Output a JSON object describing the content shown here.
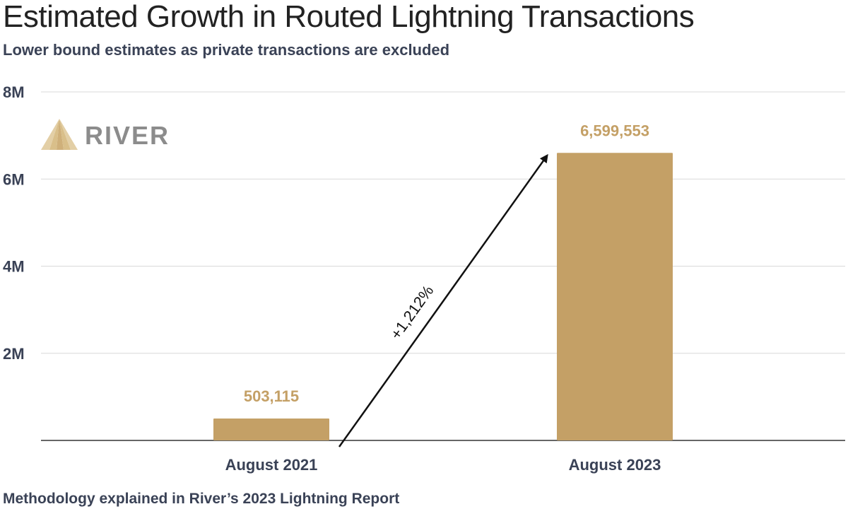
{
  "header": {
    "title": "Estimated Growth in Routed Lightning Transactions",
    "subtitle": "Lower bound estimates as private transactions are excluded"
  },
  "footer": {
    "note": "Methodology explained in River’s 2023 Lightning Report"
  },
  "logo": {
    "text": "RIVER",
    "icon": "river-peak-icon"
  },
  "colors": {
    "bar": "#c4a066",
    "bar_label": "#c4a066",
    "grid": "#d9d9d9",
    "axis": "#333333",
    "text": "#3a4256",
    "arrow": "#111111"
  },
  "chart_data": {
    "type": "bar",
    "title": "Estimated Growth in Routed Lightning Transactions",
    "subtitle": "Lower bound estimates as private transactions are excluded",
    "categories": [
      "August 2021",
      "August 2023"
    ],
    "values": [
      503115,
      6599553
    ],
    "value_labels": [
      "503,115",
      "6,599,553"
    ],
    "ylim": [
      0,
      8000000
    ],
    "yticks": [
      2000000,
      4000000,
      6000000,
      8000000
    ],
    "ytick_labels": [
      "2M",
      "4M",
      "6M",
      "8M"
    ],
    "xlabel": "",
    "ylabel": "",
    "grid": true,
    "legend": "none",
    "annotation": {
      "text": "+1,212%",
      "from_category": "August 2021",
      "to_category": "August 2023"
    }
  }
}
